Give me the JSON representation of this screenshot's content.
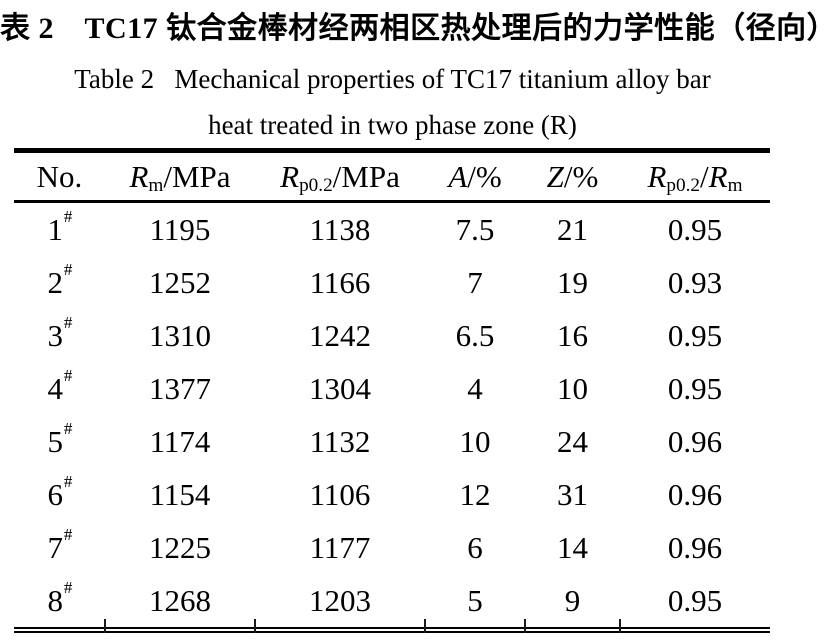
{
  "titles": {
    "chinese": "表 2　TC17 钛合金棒材经两相区热处理后的力学性能（径向）",
    "english_line1": "Table 2   Mechanical properties of TC17 titanium alloy bar",
    "english_line2": "heat treated in two phase zone (R)"
  },
  "table": {
    "header": [
      {
        "segments": [
          {
            "t": "No."
          }
        ]
      },
      {
        "segments": [
          {
            "t": "R",
            "style": "italic"
          },
          {
            "t": "m",
            "style": "sub"
          },
          {
            "t": "/MPa"
          }
        ]
      },
      {
        "segments": [
          {
            "t": "R",
            "style": "italic"
          },
          {
            "t": "p0.2",
            "style": "sub"
          },
          {
            "t": "/MPa"
          }
        ]
      },
      {
        "segments": [
          {
            "t": "A",
            "style": "italic"
          },
          {
            "t": "/%"
          }
        ]
      },
      {
        "segments": [
          {
            "t": "Z",
            "style": "italic"
          },
          {
            "t": "/%"
          }
        ]
      },
      {
        "segments": [
          {
            "t": "R",
            "style": "italic"
          },
          {
            "t": "p0.2",
            "style": "sub"
          },
          {
            "t": "/"
          },
          {
            "t": "R",
            "style": "italic"
          },
          {
            "t": "m",
            "style": "sub"
          }
        ]
      }
    ],
    "rows": [
      {
        "no": "1",
        "no_suffix": "#",
        "values": [
          "1195",
          "1138",
          "7.5",
          "21",
          "0.95"
        ]
      },
      {
        "no": "2",
        "no_suffix": "#",
        "values": [
          "1252",
          "1166",
          "7",
          "19",
          "0.93"
        ]
      },
      {
        "no": "3",
        "no_suffix": "#",
        "values": [
          "1310",
          "1242",
          "6.5",
          "16",
          "0.95"
        ]
      },
      {
        "no": "4",
        "no_suffix": "#",
        "values": [
          "1377",
          "1304",
          "4",
          "10",
          "0.95"
        ]
      },
      {
        "no": "5",
        "no_suffix": "#",
        "values": [
          "1174",
          "1132",
          "10",
          "24",
          "0.96"
        ]
      },
      {
        "no": "6",
        "no_suffix": "#",
        "values": [
          "1154",
          "1106",
          "12",
          "31",
          "0.96"
        ]
      },
      {
        "no": "7",
        "no_suffix": "#",
        "values": [
          "1225",
          "1177",
          "6",
          "14",
          "0.96"
        ]
      },
      {
        "no": "8",
        "no_suffix": "#",
        "values": [
          "1268",
          "1203",
          "5",
          "9",
          "0.95"
        ]
      }
    ]
  },
  "colors": {
    "text": "#000000",
    "background": "#ffffff",
    "rule": "#000000"
  }
}
